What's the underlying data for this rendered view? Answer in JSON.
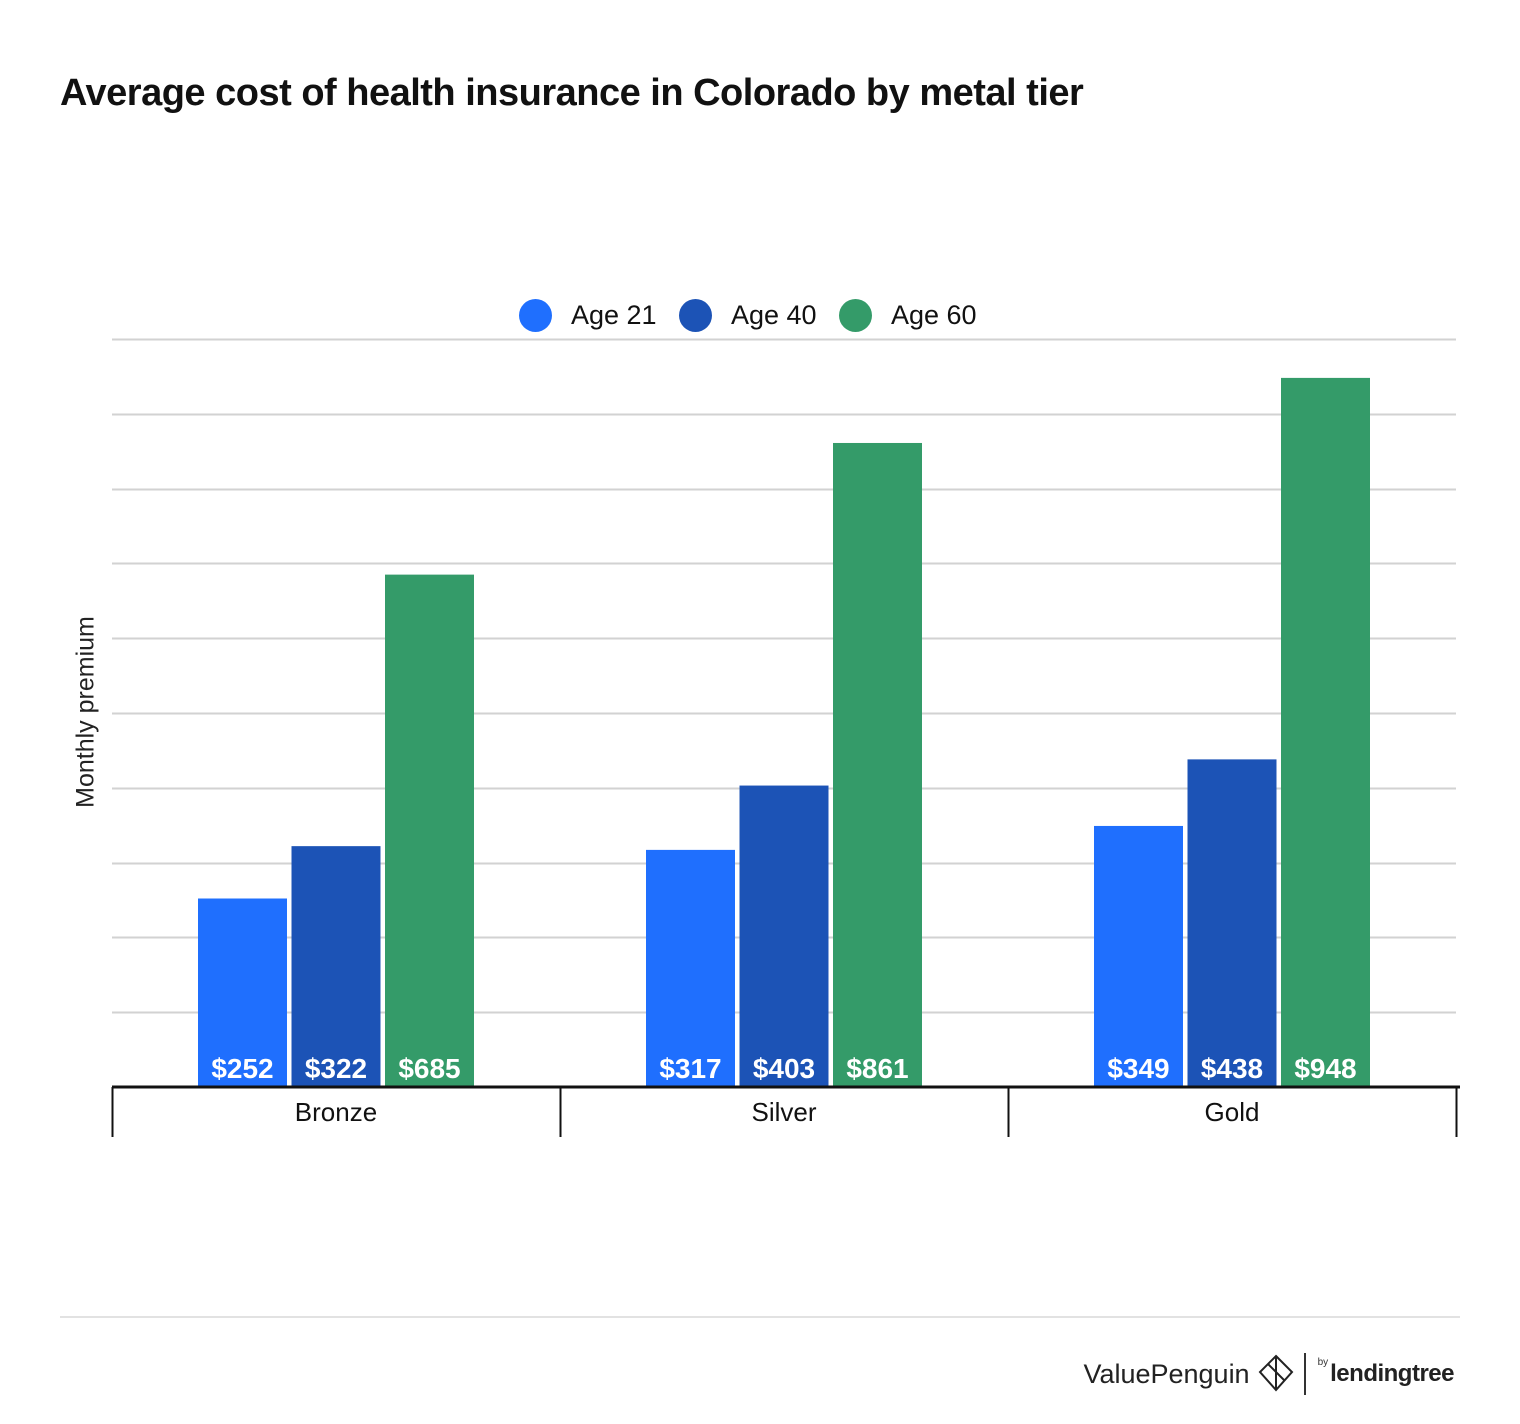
{
  "title": "Average cost of health insurance in Colorado by metal tier",
  "legend": [
    {
      "label": "Age 21",
      "color": "#1f6ffe"
    },
    {
      "label": "Age 40",
      "color": "#1c53b6"
    },
    {
      "label": "Age 60",
      "color": "#349b69"
    }
  ],
  "chart_data": {
    "type": "bar",
    "title": "Average cost of health insurance in Colorado by metal tier",
    "xlabel": "",
    "ylabel": "Monthly premium",
    "categories": [
      "Bronze",
      "Silver",
      "Gold"
    ],
    "series": [
      {
        "name": "Age 21",
        "color": "#1f6ffe",
        "values": [
          252,
          317,
          349
        ],
        "labels": [
          "$252",
          "$317",
          "$349"
        ]
      },
      {
        "name": "Age 40",
        "color": "#1c53b6",
        "values": [
          322,
          403,
          438
        ],
        "labels": [
          "$322",
          "$403",
          "$438"
        ]
      },
      {
        "name": "Age 60",
        "color": "#349b69",
        "values": [
          685,
          861,
          948
        ],
        "labels": [
          "$685",
          "$861",
          "$948"
        ]
      }
    ],
    "ylim": [
      0,
      1000
    ],
    "grid": true,
    "legend_position": "top"
  },
  "footer": {
    "brand": "ValuePenguin",
    "by": "by",
    "partner": "lendingtree"
  }
}
